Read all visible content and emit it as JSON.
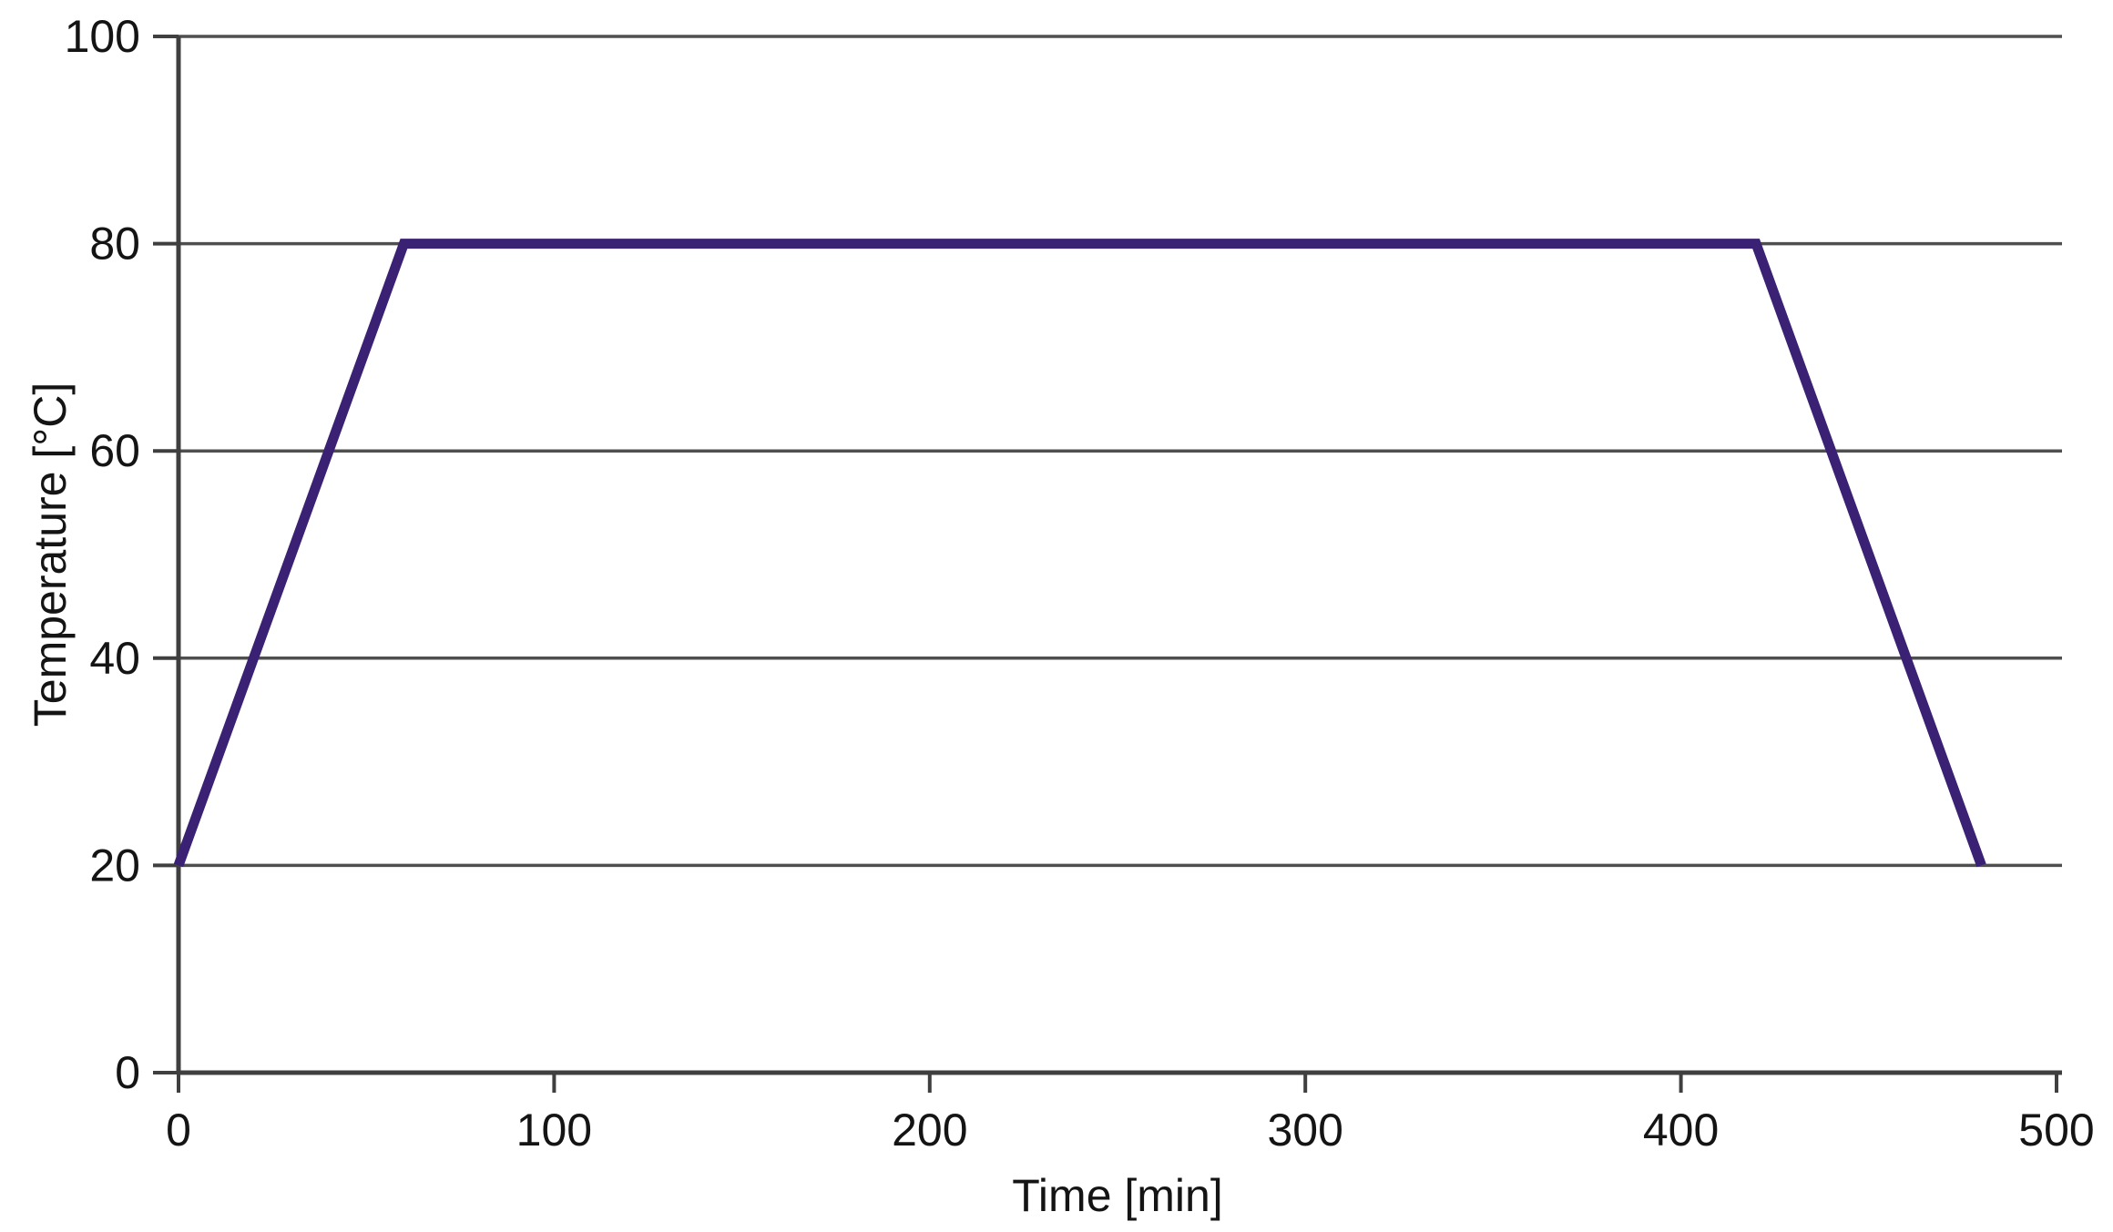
{
  "chart_data": {
    "type": "line",
    "title": "",
    "xlabel": "Time [min]",
    "ylabel": "Temperature [°C]",
    "xlim": [
      0,
      500
    ],
    "ylim": [
      0,
      100
    ],
    "x_ticks": [
      0,
      100,
      200,
      300,
      400,
      500
    ],
    "y_ticks": [
      0,
      20,
      40,
      60,
      80,
      100
    ],
    "grid": "horizontal-only",
    "legend": "none",
    "series": [
      {
        "name": "temperature-profile",
        "color": "#3b2174",
        "points": [
          [
            0,
            20
          ],
          [
            60,
            80
          ],
          [
            420,
            80
          ],
          [
            480,
            20
          ]
        ]
      }
    ]
  },
  "style": {
    "background": "#ffffff",
    "grid_color": "#4f4f4f",
    "axis_color": "#3f3f3f",
    "text_color": "#141414"
  }
}
